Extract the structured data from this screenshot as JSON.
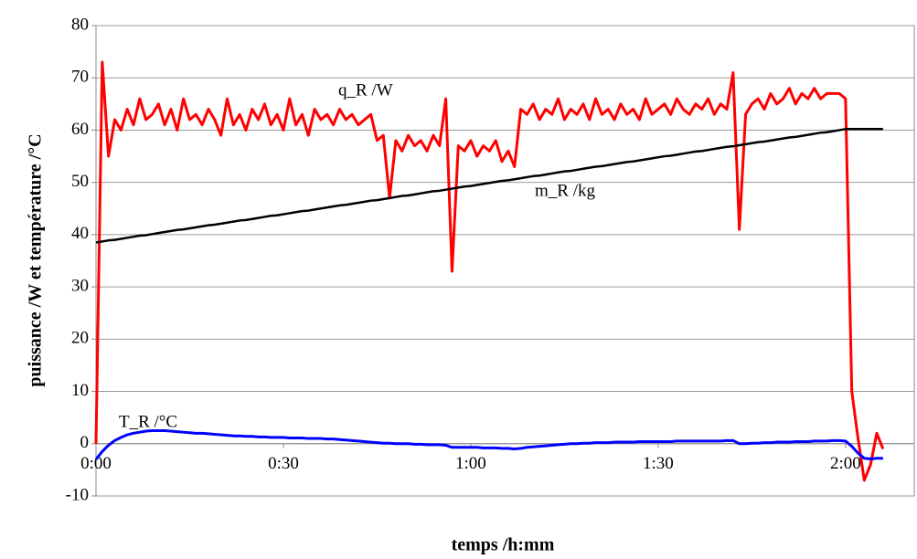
{
  "chart_data": {
    "type": "line",
    "xlabel": "temps /h:mm",
    "ylabel": "puissance /W et température /°C",
    "x": [
      0,
      1,
      2,
      3,
      4,
      5,
      6,
      7,
      8,
      9,
      10,
      11,
      12,
      13,
      14,
      15,
      16,
      17,
      18,
      19,
      20,
      21,
      22,
      23,
      24,
      25,
      26,
      27,
      28,
      29,
      30,
      31,
      32,
      33,
      34,
      35,
      36,
      37,
      38,
      39,
      40,
      41,
      42,
      43,
      44,
      45,
      46,
      47,
      48,
      49,
      50,
      51,
      52,
      53,
      54,
      55,
      56,
      57,
      58,
      59,
      60,
      61,
      62,
      63,
      64,
      65,
      66,
      67,
      68,
      69,
      70,
      71,
      72,
      73,
      74,
      75,
      76,
      77,
      78,
      79,
      80,
      81,
      82,
      83,
      84,
      85,
      86,
      87,
      88,
      89,
      90,
      91,
      92,
      93,
      94,
      95,
      96,
      97,
      98,
      99,
      100,
      101,
      102,
      103,
      104,
      105,
      106,
      107,
      108,
      109,
      110,
      111,
      112,
      113,
      114,
      115,
      116,
      117,
      118,
      119,
      120,
      121,
      122,
      123,
      124,
      125,
      126
    ],
    "series": [
      {
        "name": "q_R /W",
        "color": "#ff0000",
        "values": [
          0,
          73,
          55,
          62,
          60,
          64,
          61,
          66,
          62,
          63,
          65,
          61,
          64,
          60,
          66,
          62,
          63,
          61,
          64,
          62,
          59,
          66,
          61,
          63,
          60,
          64,
          62,
          65,
          61,
          63,
          60,
          66,
          61,
          63,
          59,
          64,
          62,
          63,
          61,
          64,
          62,
          63,
          61,
          62,
          63,
          58,
          59,
          47,
          58,
          56,
          59,
          57,
          58,
          56,
          59,
          57,
          66,
          33,
          57,
          56,
          58,
          55,
          57,
          56,
          58,
          54,
          56,
          53,
          64,
          63,
          65,
          62,
          64,
          63,
          66,
          62,
          64,
          63,
          65,
          62,
          66,
          63,
          64,
          62,
          65,
          63,
          64,
          62,
          66,
          63,
          64,
          65,
          63,
          66,
          64,
          63,
          65,
          64,
          66,
          63,
          65,
          64,
          71,
          41,
          63,
          65,
          66,
          64,
          67,
          65,
          66,
          68,
          65,
          67,
          66,
          68,
          66,
          67,
          67,
          67,
          66,
          10,
          1,
          -7,
          -4,
          2,
          -1
        ]
      },
      {
        "name": "m_R /kg",
        "color": "#000000",
        "values": [
          38.5,
          38.7,
          38.9,
          39.0,
          39.2,
          39.4,
          39.6,
          39.8,
          39.9,
          40.1,
          40.3,
          40.5,
          40.7,
          40.9,
          41.0,
          41.2,
          41.4,
          41.6,
          41.8,
          41.9,
          42.1,
          42.3,
          42.5,
          42.7,
          42.8,
          43.0,
          43.2,
          43.4,
          43.6,
          43.7,
          43.9,
          44.1,
          44.3,
          44.5,
          44.6,
          44.8,
          45.0,
          45.2,
          45.4,
          45.6,
          45.7,
          45.9,
          46.1,
          46.3,
          46.5,
          46.6,
          46.8,
          47.0,
          47.2,
          47.4,
          47.5,
          47.7,
          47.9,
          48.1,
          48.3,
          48.4,
          48.6,
          48.8,
          49.0,
          49.2,
          49.3,
          49.5,
          49.7,
          49.9,
          50.1,
          50.3,
          50.4,
          50.6,
          50.8,
          51.0,
          51.2,
          51.3,
          51.5,
          51.7,
          51.9,
          52.1,
          52.2,
          52.4,
          52.6,
          52.8,
          53.0,
          53.1,
          53.3,
          53.5,
          53.7,
          53.9,
          54.0,
          54.2,
          54.4,
          54.6,
          54.8,
          55.0,
          55.1,
          55.3,
          55.5,
          55.7,
          55.9,
          56.0,
          56.2,
          56.4,
          56.6,
          56.8,
          56.9,
          57.1,
          57.3,
          57.5,
          57.7,
          57.8,
          58.0,
          58.2,
          58.4,
          58.6,
          58.7,
          58.9,
          59.1,
          59.3,
          59.5,
          59.6,
          59.8,
          60.0,
          60.2,
          60.2,
          60.2,
          60.2,
          60.2,
          60.2,
          60.2
        ]
      },
      {
        "name": "T_R /°C",
        "color": "#0000ff",
        "values": [
          -3,
          -1.5,
          -0.3,
          0.6,
          1.2,
          1.7,
          2.0,
          2.2,
          2.4,
          2.5,
          2.5,
          2.5,
          2.4,
          2.3,
          2.2,
          2.1,
          2.0,
          2.0,
          1.9,
          1.8,
          1.7,
          1.6,
          1.5,
          1.5,
          1.4,
          1.4,
          1.3,
          1.3,
          1.2,
          1.2,
          1.2,
          1.1,
          1.1,
          1.1,
          1.0,
          1.0,
          1.0,
          0.9,
          0.9,
          0.8,
          0.7,
          0.6,
          0.5,
          0.4,
          0.3,
          0.2,
          0.1,
          0.1,
          0,
          0,
          0,
          -0.1,
          -0.1,
          -0.2,
          -0.2,
          -0.2,
          -0.3,
          -0.7,
          -0.7,
          -0.7,
          -0.7,
          -0.7,
          -0.8,
          -0.8,
          -0.8,
          -0.9,
          -0.9,
          -1.0,
          -0.9,
          -0.7,
          -0.6,
          -0.5,
          -0.4,
          -0.3,
          -0.2,
          -0.1,
          0,
          0,
          0.1,
          0.1,
          0.2,
          0.2,
          0.2,
          0.3,
          0.3,
          0.3,
          0.3,
          0.4,
          0.4,
          0.4,
          0.4,
          0.4,
          0.4,
          0.5,
          0.5,
          0.5,
          0.5,
          0.5,
          0.5,
          0.5,
          0.5,
          0.6,
          0.6,
          0,
          0,
          0.1,
          0.1,
          0.2,
          0.2,
          0.3,
          0.3,
          0.3,
          0.4,
          0.4,
          0.4,
          0.5,
          0.5,
          0.5,
          0.6,
          0.6,
          0.5,
          -0.5,
          -1.8,
          -2.8,
          -2.9,
          -2.8,
          -2.8
        ]
      }
    ],
    "xlim": [
      0,
      131
    ],
    "xticks": [
      {
        "value": 0,
        "label": "0:00"
      },
      {
        "value": 30,
        "label": "0:30"
      },
      {
        "value": 60,
        "label": "1:00"
      },
      {
        "value": 90,
        "label": "1:30"
      },
      {
        "value": 120,
        "label": "2:00"
      }
    ],
    "ylim": [
      -10,
      80
    ],
    "yticks": [
      -10,
      0,
      10,
      20,
      30,
      40,
      50,
      60,
      70,
      80
    ],
    "grid": true
  }
}
